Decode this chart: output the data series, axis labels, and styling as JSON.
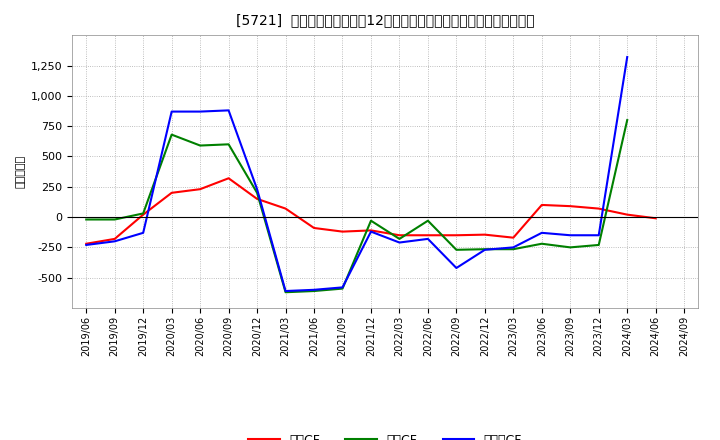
{
  "title": "[5721]  キャッシュフローの12か月移動合計の対前年同期増減額の推移",
  "ylabel": "（百万円）",
  "background_color": "#ffffff",
  "plot_bg_color": "#ffffff",
  "grid_color": "#aaaaaa",
  "dates": [
    "2019/06",
    "2019/09",
    "2019/12",
    "2020/03",
    "2020/06",
    "2020/09",
    "2020/12",
    "2021/03",
    "2021/06",
    "2021/09",
    "2021/12",
    "2022/03",
    "2022/06",
    "2022/09",
    "2022/12",
    "2023/03",
    "2023/06",
    "2023/09",
    "2023/12",
    "2024/03",
    "2024/06",
    "2024/09"
  ],
  "operating_cf": [
    -220,
    -180,
    20,
    200,
    230,
    320,
    150,
    70,
    -90,
    -120,
    -110,
    -150,
    -150,
    -150,
    -145,
    -170,
    100,
    90,
    70,
    20,
    -10,
    null
  ],
  "investing_cf": [
    -20,
    -20,
    30,
    680,
    590,
    600,
    200,
    -620,
    -610,
    -590,
    -30,
    -180,
    -30,
    -270,
    -265,
    -265,
    -220,
    -250,
    -230,
    800,
    null,
    null
  ],
  "free_cf": [
    -230,
    -200,
    -130,
    870,
    870,
    880,
    230,
    -610,
    -600,
    -580,
    -120,
    -210,
    -180,
    -420,
    -270,
    -250,
    -130,
    -150,
    -150,
    1320,
    null,
    null
  ],
  "operating_color": "#ff0000",
  "investing_color": "#008000",
  "free_color": "#0000ff",
  "ylim": [
    -750,
    1500
  ],
  "yticks": [
    -500,
    -250,
    0,
    250,
    500,
    750,
    1000,
    1250
  ],
  "legend_labels": [
    "営業CF",
    "投資CF",
    "フリーCF"
  ]
}
